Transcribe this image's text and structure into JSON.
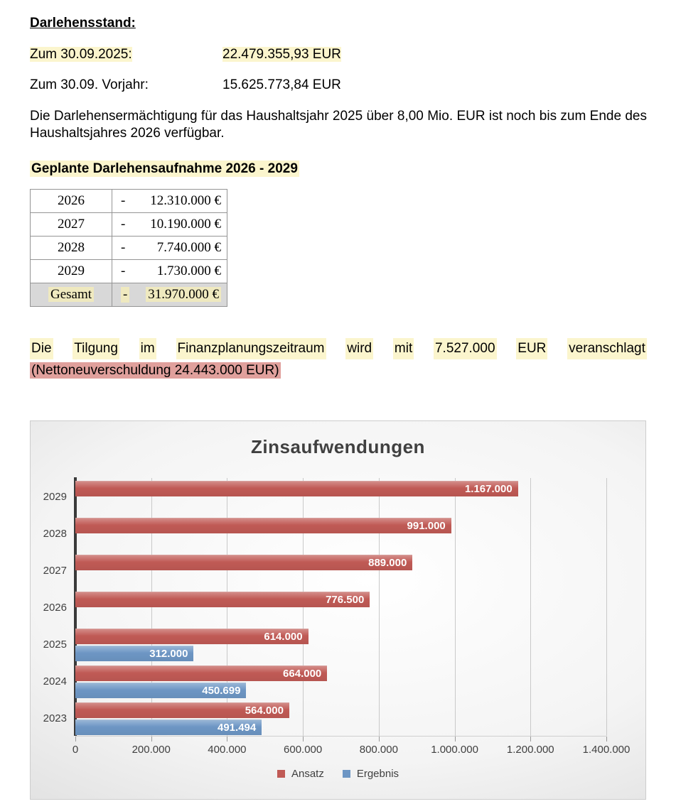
{
  "document": {
    "title": "Darlehensstand:",
    "rows": [
      {
        "label": "Zum 30.09.2025:",
        "value": "22.479.355,93 EUR",
        "highlight": true
      },
      {
        "label": "Zum 30.09. Vorjahr:",
        "value": "15.625.773,84 EUR",
        "highlight": false
      }
    ],
    "paragraph1": "Die Darlehensermächtigung für das Haushaltsjahr 2025 über 8,00 Mio. EUR ist noch bis zum Ende des Haushaltsjahres 2026 verfügbar.",
    "subheading": "Geplante Darlehensaufnahme 2026 - 2029",
    "loan_table": {
      "rows": [
        {
          "year": "2026",
          "dash": "-",
          "amount": "12.310.000 €",
          "total": false
        },
        {
          "year": "2027",
          "dash": "-",
          "amount": "10.190.000 €",
          "total": false
        },
        {
          "year": "2028",
          "dash": "-",
          "amount": "7.740.000 €",
          "total": false
        },
        {
          "year": "2029",
          "dash": "-",
          "amount": "1.730.000 €",
          "total": false
        },
        {
          "year": "Gesamt",
          "dash": "-",
          "amount": "31.970.000 €",
          "total": true
        }
      ]
    },
    "tilgung_line1_words": [
      "Die",
      "Tilgung",
      "im",
      "Finanzplanungszeitraum",
      "wird",
      "mit",
      "7.527.000",
      "EUR",
      "veranschlagt"
    ],
    "tilgung_line2": "(Nettoneuverschuldung 24.443.000 EUR)"
  },
  "colors": {
    "highlight_yellow": "#fbf5cd",
    "highlight_pink": "#e0a09c",
    "ansatz_red": "#c05a55",
    "ergebnis_blue": "#6d96c4",
    "axis_line": "#3a3a3a"
  },
  "chart_data": {
    "type": "bar",
    "orientation": "horizontal",
    "title": "Zinsaufwendungen",
    "categories": [
      "2029",
      "2028",
      "2027",
      "2026",
      "2025",
      "2024",
      "2023"
    ],
    "series": [
      {
        "name": "Ansatz",
        "color": "#c05a55",
        "values": [
          1167000,
          991000,
          889000,
          776500,
          614000,
          664000,
          564000
        ],
        "labels": [
          "1.167.000",
          "991.000",
          "889.000",
          "776.500",
          "614.000",
          "664.000",
          "564.000"
        ]
      },
      {
        "name": "Ergebnis",
        "color": "#6d96c4",
        "values": [
          null,
          null,
          null,
          null,
          312000,
          450699,
          491494
        ],
        "labels": [
          null,
          null,
          null,
          null,
          "312.000",
          "450.699",
          "491.494"
        ]
      }
    ],
    "xlim": [
      0,
      1400000
    ],
    "x_tick_step": 200000,
    "x_ticks": [
      "0",
      "200.000",
      "400.000",
      "600.000",
      "800.000",
      "1.000.000",
      "1.200.000",
      "1.400.000"
    ],
    "grid": true,
    "legend_position": "bottom",
    "data_labels": "inside-end-white-bold"
  }
}
